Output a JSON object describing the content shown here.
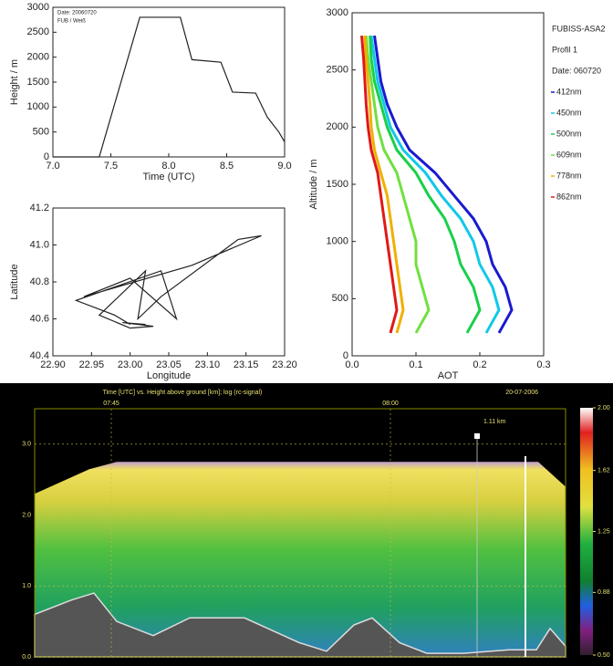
{
  "chart_data": [
    {
      "type": "line",
      "xlabel": "Time (UTC)",
      "ylabel": "Height / m",
      "legend_lines": [
        "Date: 20060720",
        "FUB / Weiß"
      ],
      "x": [
        7.0,
        7.4,
        7.55,
        7.75,
        8.1,
        8.2,
        8.45,
        8.55,
        8.75,
        8.85,
        8.95,
        9.0
      ],
      "values": [
        0,
        0,
        1200,
        2800,
        2800,
        1950,
        1900,
        1300,
        1280,
        800,
        500,
        300
      ],
      "color": "#222222",
      "xlim": [
        7.0,
        9.0
      ],
      "xticks": [
        {
          "value": 7,
          "label": "7.0"
        },
        {
          "value": 7.5,
          "label": "7.5"
        },
        {
          "value": 8,
          "label": "8.0"
        },
        {
          "value": 8.5,
          "label": "8.5"
        },
        {
          "value": 9,
          "label": "9.0"
        }
      ],
      "ylim": [
        0,
        3000
      ],
      "yticks": [
        0,
        500,
        1000,
        1500,
        2000,
        2500,
        3000
      ]
    },
    {
      "type": "line",
      "xlabel": "Longitude",
      "ylabel": "Latitude",
      "x": [
        23.0,
        22.98,
        22.93,
        23.04,
        23.06,
        23.0,
        22.94,
        23.08,
        23.17,
        23.14,
        23.04,
        23.01,
        23.02,
        22.96,
        23.0,
        23.03,
        22.99,
        23.02
      ],
      "values": [
        40.57,
        40.62,
        40.7,
        40.86,
        40.6,
        40.82,
        40.72,
        40.89,
        41.05,
        41.03,
        40.72,
        40.6,
        40.86,
        40.62,
        40.55,
        40.56,
        40.58,
        40.57
      ],
      "color": "#222222",
      "xlim": [
        22.9,
        23.2
      ],
      "xticks": [
        {
          "value": 22.9,
          "label": "22.90"
        },
        {
          "value": 22.95,
          "label": "22.95"
        },
        {
          "value": 23,
          "label": "23.00"
        },
        {
          "value": 23.05,
          "label": "23.05"
        },
        {
          "value": 23.1,
          "label": "23.10"
        },
        {
          "value": 23.15,
          "label": "23.15"
        },
        {
          "value": 23.2,
          "label": "23.20"
        }
      ],
      "ylim": [
        40.4,
        41.2
      ],
      "yticks": [
        40.4,
        40.6,
        40.8,
        {
          "value": 41,
          "label": "41.0"
        },
        41.2
      ]
    },
    {
      "type": "profile",
      "xlabel": "AOT",
      "ylabel": "Altitude / m",
      "legend_lines": [
        "FUBISS-ASA2",
        "Profil 1",
        "Date: 060720"
      ],
      "y": [
        200,
        400,
        600,
        800,
        1000,
        1200,
        1400,
        1600,
        1800,
        2000,
        2200,
        2400,
        2600,
        2800
      ],
      "series": [
        {
          "name": "412nm",
          "color": "#1a1ad0",
          "values": [
            0.23,
            0.25,
            0.24,
            0.22,
            0.21,
            0.19,
            0.16,
            0.13,
            0.09,
            0.07,
            0.055,
            0.045,
            0.04,
            0.035
          ]
        },
        {
          "name": "450nm",
          "color": "#10c8e8",
          "values": [
            0.21,
            0.23,
            0.22,
            0.2,
            0.19,
            0.17,
            0.14,
            0.115,
            0.08,
            0.06,
            0.05,
            0.04,
            0.035,
            0.03
          ]
        },
        {
          "name": "500nm",
          "color": "#18d048",
          "values": [
            0.18,
            0.2,
            0.19,
            0.17,
            0.16,
            0.145,
            0.12,
            0.1,
            0.07,
            0.055,
            0.045,
            0.035,
            0.03,
            0.028
          ]
        },
        {
          "name": "609nm",
          "color": "#70e040",
          "values": [
            0.1,
            0.12,
            0.11,
            0.1,
            0.1,
            0.09,
            0.08,
            0.07,
            0.05,
            0.04,
            0.035,
            0.03,
            0.025,
            0.022
          ]
        },
        {
          "name": "778nm",
          "color": "#f0b000",
          "values": [
            0.07,
            0.08,
            0.075,
            0.07,
            0.065,
            0.06,
            0.055,
            0.045,
            0.035,
            0.03,
            0.028,
            0.025,
            0.022,
            0.02
          ]
        },
        {
          "name": "862nm",
          "color": "#e01818",
          "values": [
            0.06,
            0.07,
            0.065,
            0.06,
            0.055,
            0.05,
            0.045,
            0.04,
            0.03,
            0.025,
            0.022,
            0.02,
            0.018,
            0.015
          ]
        }
      ],
      "xlim": [
        0,
        0.3
      ],
      "xticks": [
        {
          "value": 0,
          "label": "0.0"
        },
        0.1,
        0.2,
        0.3
      ],
      "ylim": [
        0,
        3000
      ],
      "yticks": [
        0,
        500,
        1000,
        1500,
        2000,
        2500,
        3000
      ]
    },
    {
      "type": "curtain",
      "title": "Time [UTC] vs. Height above ground [km]; log (rc-signal)",
      "date": "20-07-2006",
      "time_labels": [
        "07:45",
        "08:00"
      ],
      "annotation": "1.11 km",
      "ylim": [
        0,
        3.5
      ],
      "yticks": [
        {
          "value": 0,
          "label": "0.0"
        },
        {
          "value": 1,
          "label": "1.0"
        },
        {
          "value": 2,
          "label": "2.0"
        },
        {
          "value": 3,
          "label": "3.0"
        }
      ],
      "clim": [
        0.5,
        2.0
      ],
      "cticks": [
        {
          "value": 2,
          "label": "2.00"
        },
        {
          "value": 1.62,
          "label": "1.62"
        },
        {
          "value": 1.25,
          "label": "1.25"
        },
        {
          "value": 0.88,
          "label": "0.88"
        },
        {
          "value": 0.5,
          "label": "0.50"
        }
      ]
    }
  ]
}
